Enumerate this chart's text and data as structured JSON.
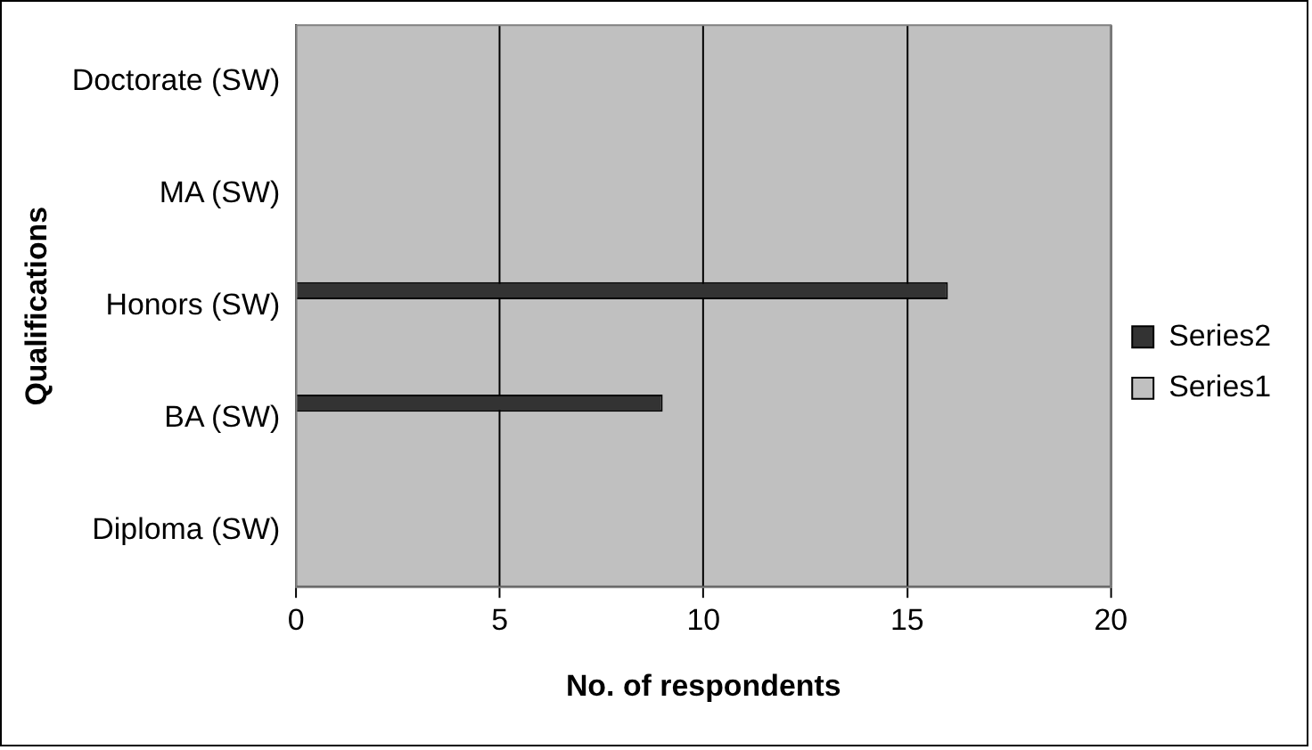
{
  "chart_data": {
    "type": "bar",
    "orientation": "horizontal",
    "xlabel": "No. of respondents",
    "ylabel": "Qualifications",
    "categories": [
      "Doctorate (SW)",
      "MA (SW)",
      "Honors (SW)",
      "BA (SW)",
      "Diploma (SW)"
    ],
    "series": [
      {
        "name": "Series2",
        "color": "#333333",
        "values": [
          0,
          0,
          16,
          9,
          0
        ]
      },
      {
        "name": "Series1",
        "color": "#c0c0c0",
        "values": [
          0,
          0,
          0,
          0,
          0
        ]
      }
    ],
    "xlim": [
      0,
      20
    ],
    "xticks": [
      0,
      5,
      10,
      15,
      20
    ],
    "grid": "x",
    "legend": "right"
  }
}
